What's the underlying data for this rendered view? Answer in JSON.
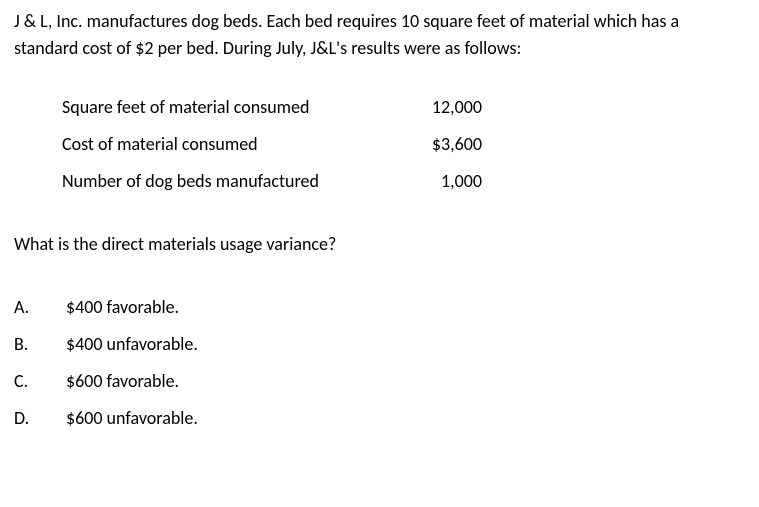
{
  "intro": "J & L, Inc. manufactures dog beds. Each bed requires 10 square feet of material which has a standard cost of $2 per bed. During July, J&L's results were as follows:",
  "table": {
    "rows": [
      {
        "label": "Square feet of material consumed",
        "value": "12,000"
      },
      {
        "label": "Cost of material consumed",
        "value": "$3,600"
      },
      {
        "label": "Number of dog beds manufactured",
        "value": "1,000"
      }
    ]
  },
  "question": "What is the direct materials usage variance?",
  "options": [
    {
      "letter": "A.",
      "text": "$400 favorable."
    },
    {
      "letter": "B.",
      "text": "$400 unfavorable."
    },
    {
      "letter": "C.",
      "text": "$600 favorable."
    },
    {
      "letter": "D.",
      "text": "$600 unfavorable."
    }
  ]
}
